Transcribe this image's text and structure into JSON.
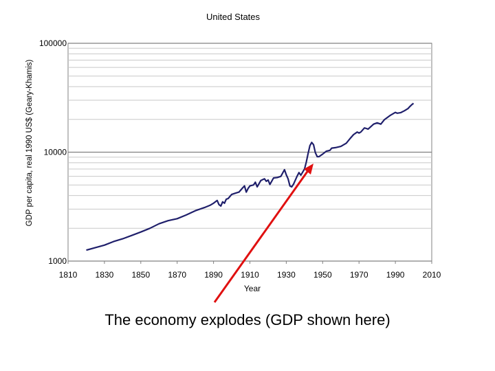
{
  "caption": "The economy explodes (GDP shown here)",
  "colors": {
    "series": "#1f1f6b",
    "arrow": "#e01010",
    "grid": "#c8c8c8",
    "major_grid": "#808080"
  },
  "chart_data": {
    "type": "line",
    "title": "United States",
    "xlabel": "Year",
    "ylabel": "GDP per capita, real 1990 US$ (Geary-Khamis)",
    "xlim": [
      1810,
      2010
    ],
    "ylim": [
      1000,
      100000
    ],
    "yscale": "log",
    "grid": true,
    "x_ticks": [
      1810,
      1830,
      1850,
      1870,
      1890,
      1910,
      1930,
      1950,
      1970,
      1990,
      2010
    ],
    "y_ticks": [
      1000,
      10000,
      100000
    ],
    "series": [
      {
        "x": [
          1820,
          1825,
          1830,
          1835,
          1840,
          1845,
          1850,
          1855,
          1860,
          1865,
          1870,
          1875,
          1880,
          1885,
          1888,
          1890,
          1892,
          1893,
          1894,
          1895,
          1896,
          1897,
          1898,
          1900,
          1902,
          1904,
          1906,
          1907,
          1908,
          1909,
          1910,
          1912,
          1913,
          1914,
          1916,
          1918,
          1919,
          1920,
          1921,
          1923,
          1925,
          1927,
          1929,
          1930,
          1931,
          1932,
          1933,
          1934,
          1936,
          1937,
          1938,
          1939,
          1940,
          1941,
          1942,
          1943,
          1944,
          1945,
          1946,
          1947,
          1948,
          1950,
          1952,
          1954,
          1955,
          1957,
          1960,
          1963,
          1965,
          1967,
          1969,
          1970,
          1971,
          1973,
          1974,
          1975,
          1978,
          1980,
          1982,
          1984,
          1987,
          1990,
          1991,
          1993,
          1995,
          1997,
          1998,
          1999,
          2000
        ],
        "y": [
          1260,
          1330,
          1400,
          1510,
          1600,
          1720,
          1850,
          2000,
          2200,
          2350,
          2450,
          2650,
          2900,
          3100,
          3250,
          3400,
          3600,
          3300,
          3200,
          3500,
          3400,
          3700,
          3750,
          4100,
          4200,
          4300,
          4700,
          4900,
          4300,
          4650,
          4900,
          5000,
          5300,
          4800,
          5500,
          5700,
          5400,
          5550,
          5050,
          5800,
          5850,
          6000,
          6900,
          6200,
          5700,
          4900,
          4800,
          5100,
          6050,
          6500,
          6150,
          6550,
          7000,
          8100,
          9700,
          11500,
          12300,
          11700,
          9900,
          9100,
          9100,
          9600,
          10200,
          10400,
          10900,
          11000,
          11300,
          12100,
          13300,
          14500,
          15300,
          15000,
          15300,
          16700,
          16500,
          16300,
          18100,
          18600,
          18100,
          19900,
          21700,
          23200,
          22800,
          23100,
          24000,
          25200,
          26300,
          27300,
          28100
        ]
      }
    ]
  }
}
